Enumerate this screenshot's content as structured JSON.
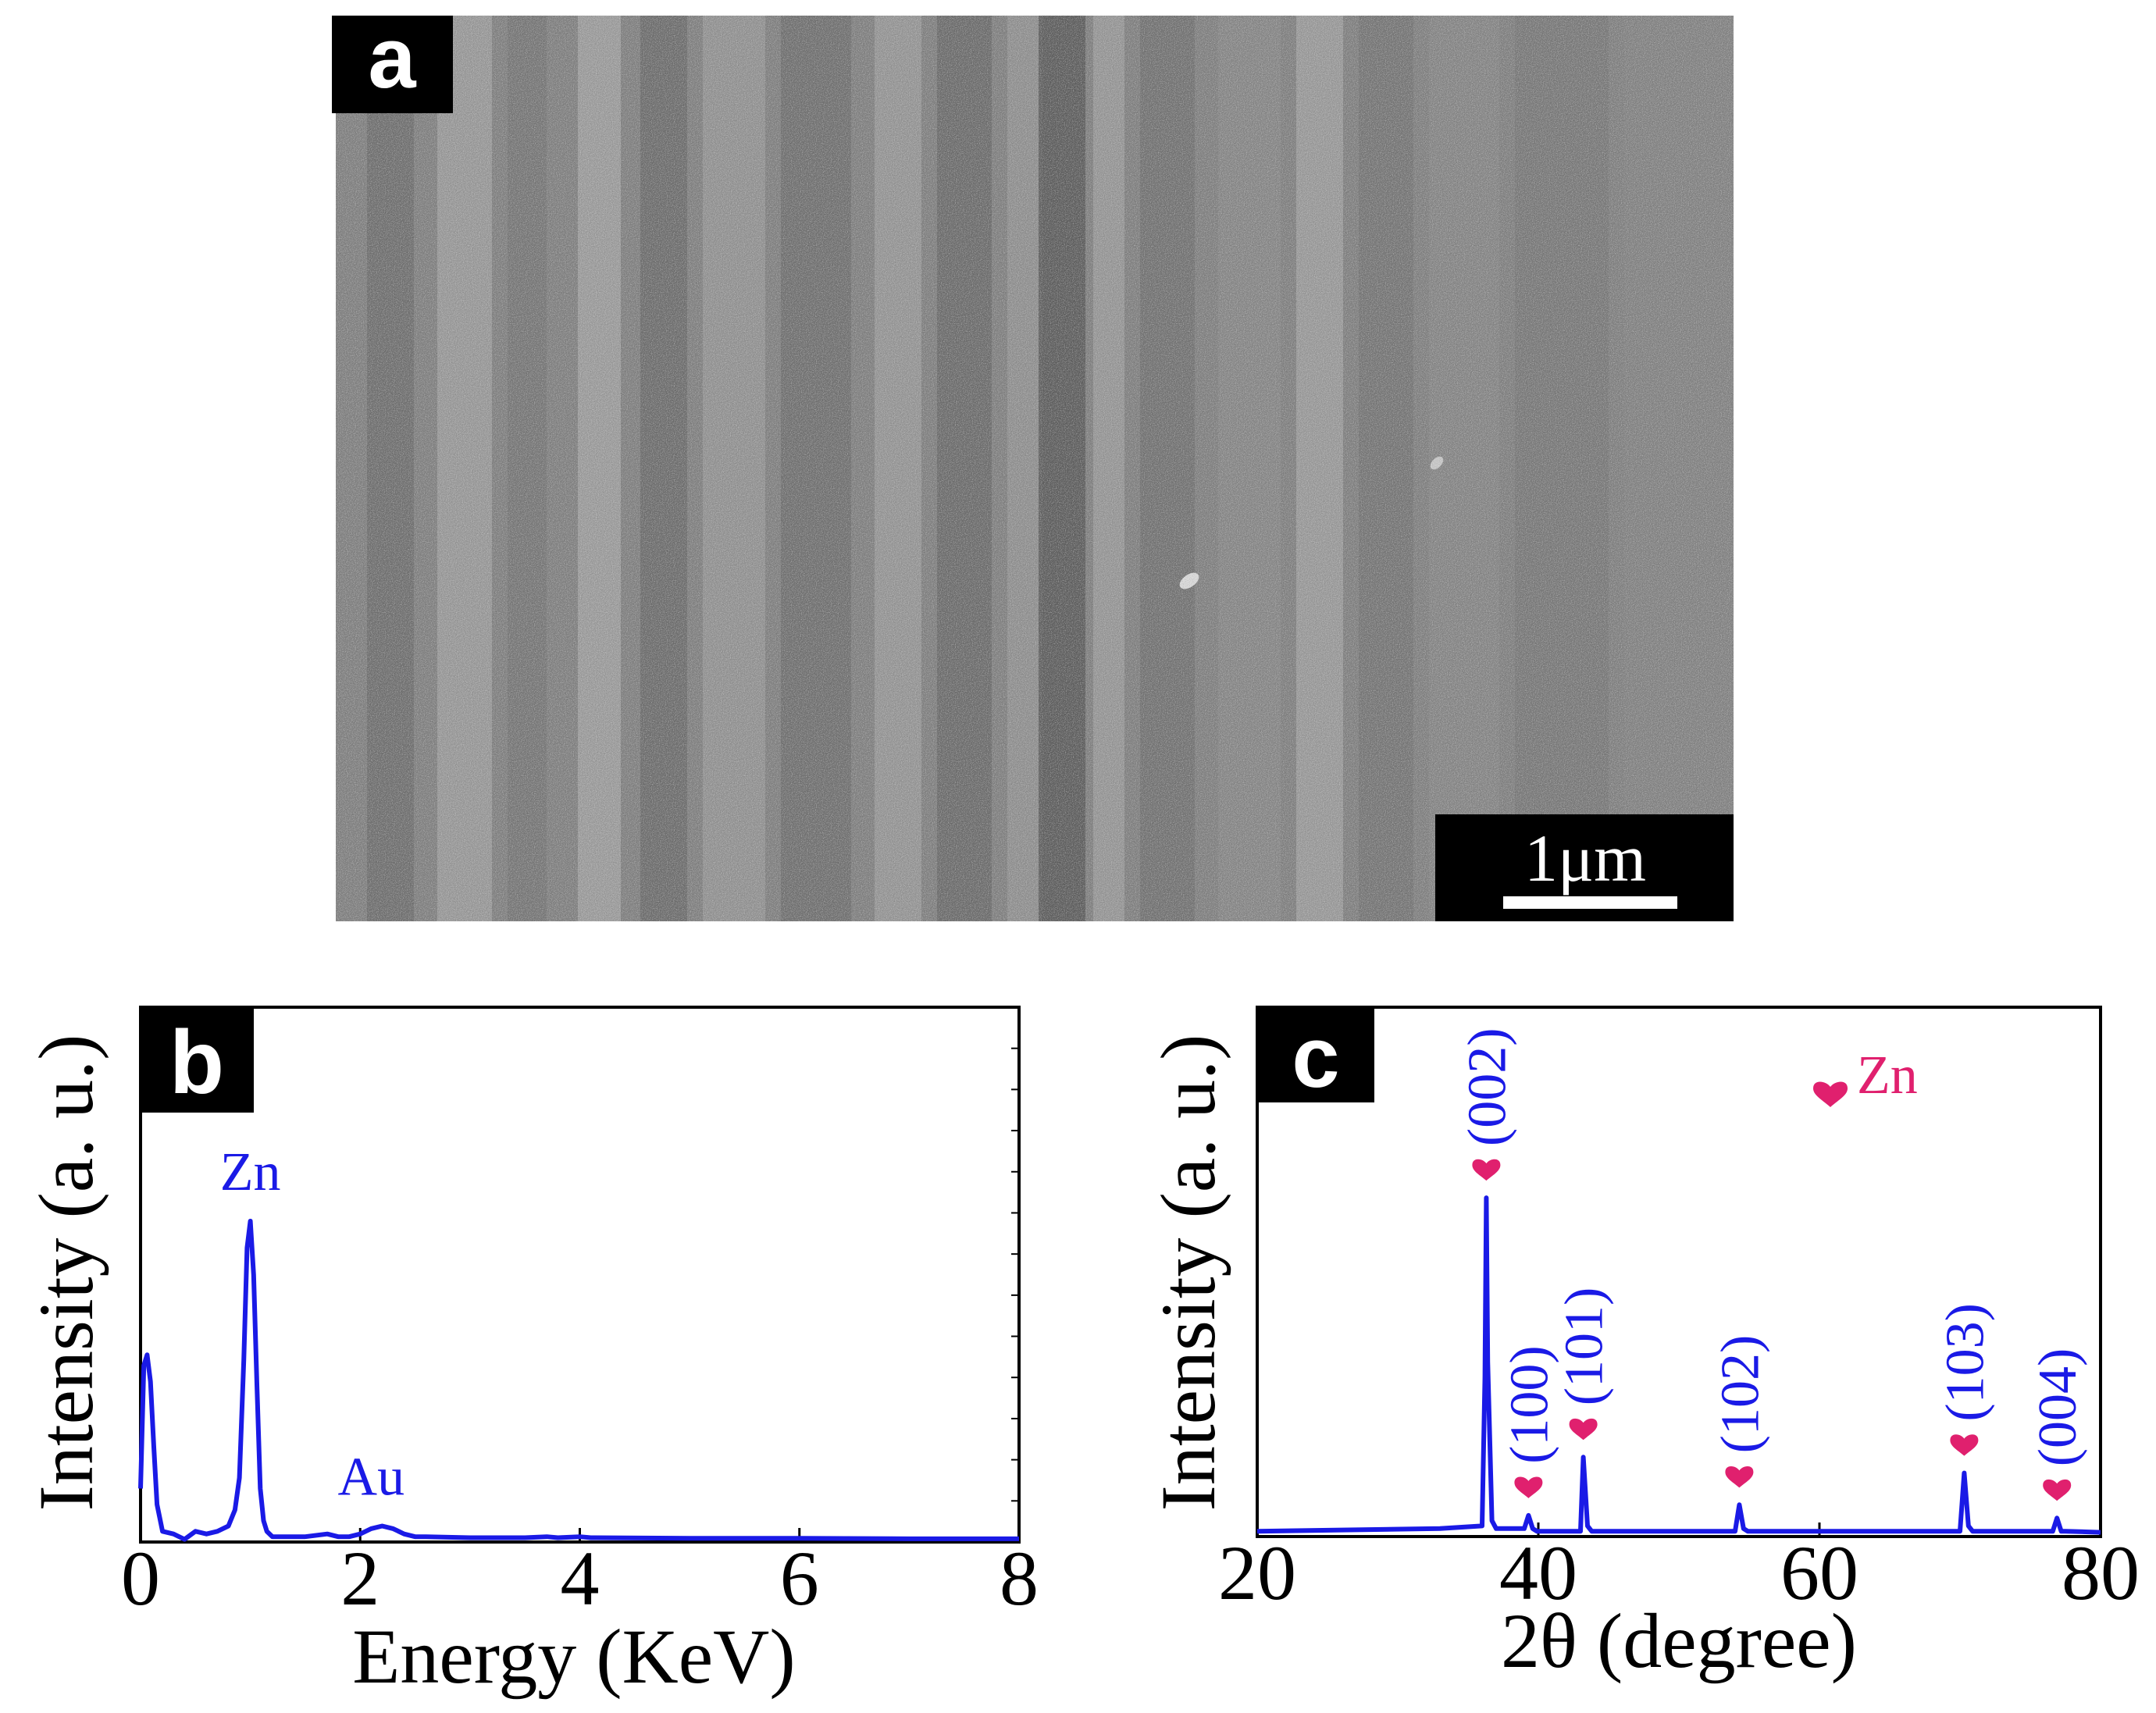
{
  "colors": {
    "series": "#1a1ae6",
    "marker": "#e0206e",
    "frame": "#000000",
    "tag_bg": "#000000",
    "tag_fg": "#ffffff",
    "sem_base": "#8a8a8a"
  },
  "panel_a": {
    "label": "a",
    "scalebar_label": "1μm",
    "image_kind": "grayscale SEM micrograph with vertical stripes"
  },
  "chart_data": [
    {
      "panel": "b",
      "type": "line",
      "xlabel": "Energy (KeV)",
      "ylabel": "Intensity (a. u.)",
      "xlim": [
        0,
        8
      ],
      "ylim": [
        0,
        1
      ],
      "xticks": [
        0,
        2,
        4,
        6,
        8
      ],
      "grid": false,
      "series": [
        {
          "x": [
            0.0,
            0.03,
            0.06,
            0.09,
            0.12,
            0.15,
            0.2,
            0.3,
            0.4,
            0.5,
            0.6,
            0.7,
            0.8,
            0.86,
            0.9,
            0.94,
            0.97,
            1.0,
            1.03,
            1.06,
            1.09,
            1.12,
            1.15,
            1.2,
            1.3,
            1.5,
            1.7,
            1.8,
            1.9,
            2.0,
            2.1,
            2.2,
            2.3,
            2.4,
            2.5,
            2.6,
            3.0,
            3.5,
            3.7,
            3.8,
            4.0,
            4.1,
            5.0,
            6.0,
            7.0,
            8.0
          ],
          "y": [
            0.1,
            0.33,
            0.35,
            0.3,
            0.18,
            0.07,
            0.02,
            0.015,
            0.005,
            0.02,
            0.015,
            0.02,
            0.03,
            0.06,
            0.12,
            0.34,
            0.55,
            0.6,
            0.5,
            0.29,
            0.1,
            0.04,
            0.02,
            0.01,
            0.01,
            0.01,
            0.015,
            0.01,
            0.01,
            0.015,
            0.025,
            0.03,
            0.025,
            0.015,
            0.01,
            0.01,
            0.008,
            0.008,
            0.01,
            0.008,
            0.01,
            0.008,
            0.007,
            0.007,
            0.006,
            0.006
          ]
        }
      ],
      "annotations": [
        {
          "text": "Zn",
          "x": 1.0
        },
        {
          "text": "Au",
          "x": 2.1
        }
      ]
    },
    {
      "panel": "c",
      "type": "line",
      "xlabel": "2θ (degree)",
      "ylabel": "Intensity (a. u.)",
      "xlim": [
        20,
        80
      ],
      "ylim": [
        0,
        1
      ],
      "xticks": [
        20,
        40,
        60,
        80
      ],
      "grid": false,
      "legend": {
        "text": "Zn",
        "placement": "top-right"
      },
      "series": [
        {
          "x": [
            20,
            33.0,
            36.0,
            36.2,
            36.3,
            36.4,
            36.7,
            37.0,
            39.0,
            39.3,
            39.6,
            39.9,
            43.0,
            43.2,
            43.5,
            43.8,
            54.0,
            54.3,
            54.6,
            54.9,
            70.0,
            70.3,
            70.6,
            70.9,
            76.6,
            76.9,
            77.2,
            77.5,
            80
          ],
          "y": [
            0.01,
            0.015,
            0.02,
            0.3,
            0.64,
            0.33,
            0.03,
            0.015,
            0.015,
            0.04,
            0.015,
            0.01,
            0.01,
            0.15,
            0.02,
            0.01,
            0.01,
            0.06,
            0.015,
            0.01,
            0.01,
            0.12,
            0.02,
            0.01,
            0.01,
            0.035,
            0.01,
            0.01,
            0.008
          ]
        }
      ],
      "peaks": [
        {
          "label": "(002)",
          "x": 36.3,
          "y": 0.64
        },
        {
          "label": "(100)",
          "x": 39.3,
          "y": 0.04
        },
        {
          "label": "(101)",
          "x": 43.2,
          "y": 0.15
        },
        {
          "label": "(102)",
          "x": 54.3,
          "y": 0.06
        },
        {
          "label": "(103)",
          "x": 70.3,
          "y": 0.12
        },
        {
          "label": "(004)",
          "x": 76.9,
          "y": 0.035
        }
      ]
    }
  ]
}
